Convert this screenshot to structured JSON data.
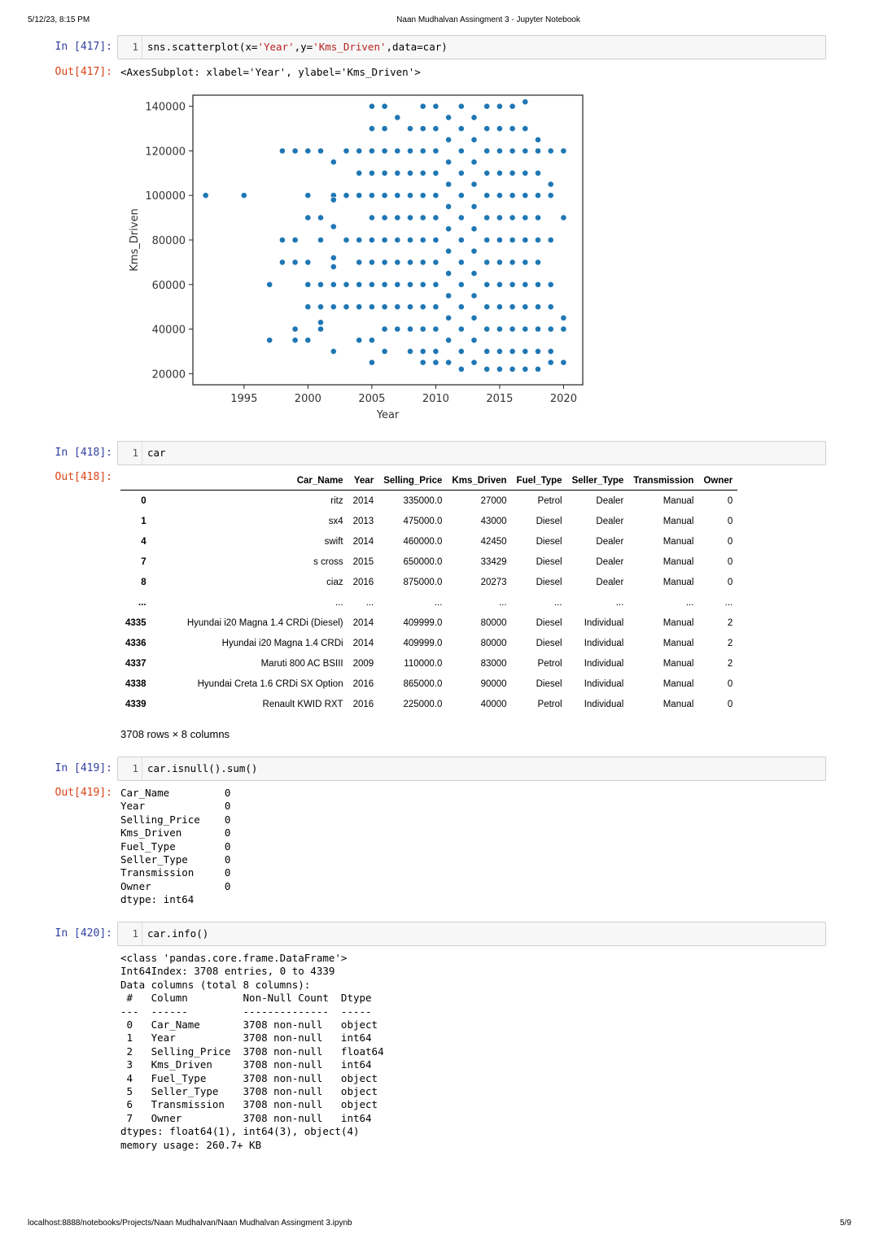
{
  "header": {
    "datetime": "5/12/23, 8:15 PM",
    "title": "Naan Mudhalvan Assingment 3 - Jupyter Notebook"
  },
  "footer": {
    "url": "localhost:8888/notebooks/Projects/Naan Mudhalvan/Naan Mudhalvan Assingment 3.ipynb",
    "page": "5/9"
  },
  "cells": [
    {
      "in_prompt": "In [417]:",
      "line_no": "1",
      "code_parts": [
        "sns.scatterplot(x=",
        "'Year'",
        ",y=",
        "'Kms_Driven'",
        ",data=car)"
      ],
      "out_prompt": "Out[417]:",
      "output": "<AxesSubplot: xlabel='Year', ylabel='Kms_Driven'>"
    },
    {
      "in_prompt": "In [418]:",
      "line_no": "1",
      "code": "car",
      "out_prompt": "Out[418]:",
      "footer_text": "3708 rows × 8 columns"
    },
    {
      "in_prompt": "In [419]:",
      "line_no": "1",
      "code": "car.isnull().sum()",
      "out_prompt": "Out[419]:",
      "output": "Car_Name         0\nYear             0\nSelling_Price    0\nKms_Driven       0\nFuel_Type        0\nSeller_Type      0\nTransmission     0\nOwner            0\ndtype: int64"
    },
    {
      "in_prompt": "In [420]:",
      "line_no": "1",
      "code": "car.info()",
      "output": "<class 'pandas.core.frame.DataFrame'>\nInt64Index: 3708 entries, 0 to 4339\nData columns (total 8 columns):\n #   Column         Non-Null Count  Dtype  \n---  ------         --------------  -----  \n 0   Car_Name       3708 non-null   object \n 1   Year           3708 non-null   int64  \n 2   Selling_Price  3708 non-null   float64\n 3   Kms_Driven     3708 non-null   int64  \n 4   Fuel_Type      3708 non-null   object \n 5   Seller_Type    3708 non-null   object \n 6   Transmission   3708 non-null   object \n 7   Owner          3708 non-null   int64  \ndtypes: float64(1), int64(3), object(4)\nmemory usage: 260.7+ KB"
    }
  ],
  "table": {
    "columns": [
      "",
      "Car_Name",
      "Year",
      "Selling_Price",
      "Kms_Driven",
      "Fuel_Type",
      "Seller_Type",
      "Transmission",
      "Owner"
    ],
    "rows": [
      [
        "0",
        "ritz",
        "2014",
        "335000.0",
        "27000",
        "Petrol",
        "Dealer",
        "Manual",
        "0"
      ],
      [
        "1",
        "sx4",
        "2013",
        "475000.0",
        "43000",
        "Diesel",
        "Dealer",
        "Manual",
        "0"
      ],
      [
        "4",
        "swift",
        "2014",
        "460000.0",
        "42450",
        "Diesel",
        "Dealer",
        "Manual",
        "0"
      ],
      [
        "7",
        "s cross",
        "2015",
        "650000.0",
        "33429",
        "Diesel",
        "Dealer",
        "Manual",
        "0"
      ],
      [
        "8",
        "ciaz",
        "2016",
        "875000.0",
        "20273",
        "Diesel",
        "Dealer",
        "Manual",
        "0"
      ],
      [
        "...",
        "...",
        "...",
        "...",
        "...",
        "...",
        "...",
        "...",
        "..."
      ],
      [
        "4335",
        "Hyundai i20 Magna 1.4 CRDi (Diesel)",
        "2014",
        "409999.0",
        "80000",
        "Diesel",
        "Individual",
        "Manual",
        "2"
      ],
      [
        "4336",
        "Hyundai i20 Magna 1.4 CRDi",
        "2014",
        "409999.0",
        "80000",
        "Diesel",
        "Individual",
        "Manual",
        "2"
      ],
      [
        "4337",
        "Maruti 800 AC BSIII",
        "2009",
        "110000.0",
        "83000",
        "Petrol",
        "Individual",
        "Manual",
        "2"
      ],
      [
        "4338",
        "Hyundai Creta 1.6 CRDi SX Option",
        "2016",
        "865000.0",
        "90000",
        "Diesel",
        "Individual",
        "Manual",
        "0"
      ],
      [
        "4339",
        "Renault KWID RXT",
        "2016",
        "225000.0",
        "40000",
        "Petrol",
        "Individual",
        "Manual",
        "0"
      ]
    ]
  },
  "chart_data": {
    "type": "scatter",
    "title": "",
    "xlabel": "Year",
    "ylabel": "Kms_Driven",
    "xlim": [
      1991,
      2021.5
    ],
    "ylim": [
      15000,
      145000
    ],
    "xticks": [
      1995,
      2000,
      2005,
      2010,
      2015,
      2020
    ],
    "yticks": [
      20000,
      40000,
      60000,
      80000,
      100000,
      120000,
      140000
    ],
    "marker_color": "#1f77b4",
    "grid": false,
    "series": [
      {
        "points": [
          [
            1992,
            100000
          ],
          [
            1995,
            100000
          ],
          [
            1997,
            35000
          ],
          [
            1997,
            60000
          ],
          [
            1998,
            120000
          ],
          [
            1998,
            80000
          ],
          [
            1998,
            70000
          ],
          [
            1999,
            120000
          ],
          [
            1999,
            80000
          ],
          [
            1999,
            70000
          ],
          [
            1999,
            40000
          ],
          [
            1999,
            35000
          ],
          [
            2000,
            120000
          ],
          [
            2000,
            100000
          ],
          [
            2000,
            90000
          ],
          [
            2000,
            70000
          ],
          [
            2000,
            60000
          ],
          [
            2000,
            50000
          ],
          [
            2000,
            35000
          ],
          [
            2001,
            120000
          ],
          [
            2001,
            90000
          ],
          [
            2001,
            80000
          ],
          [
            2001,
            60000
          ],
          [
            2001,
            50000
          ],
          [
            2001,
            43000
          ],
          [
            2001,
            40000
          ],
          [
            2002,
            115000
          ],
          [
            2002,
            100000
          ],
          [
            2002,
            98000
          ],
          [
            2002,
            86000
          ],
          [
            2002,
            72000
          ],
          [
            2002,
            68000
          ],
          [
            2002,
            60000
          ],
          [
            2002,
            50000
          ],
          [
            2002,
            30000
          ],
          [
            2003,
            120000
          ],
          [
            2003,
            100000
          ],
          [
            2003,
            80000
          ],
          [
            2003,
            60000
          ],
          [
            2003,
            50000
          ],
          [
            2004,
            120000
          ],
          [
            2004,
            110000
          ],
          [
            2004,
            100000
          ],
          [
            2004,
            80000
          ],
          [
            2004,
            70000
          ],
          [
            2004,
            60000
          ],
          [
            2004,
            50000
          ],
          [
            2004,
            35000
          ],
          [
            2005,
            140000
          ],
          [
            2005,
            130000
          ],
          [
            2005,
            120000
          ],
          [
            2005,
            110000
          ],
          [
            2005,
            100000
          ],
          [
            2005,
            90000
          ],
          [
            2005,
            80000
          ],
          [
            2005,
            70000
          ],
          [
            2005,
            60000
          ],
          [
            2005,
            50000
          ],
          [
            2005,
            35000
          ],
          [
            2005,
            25000
          ],
          [
            2006,
            140000
          ],
          [
            2006,
            130000
          ],
          [
            2006,
            120000
          ],
          [
            2006,
            110000
          ],
          [
            2006,
            100000
          ],
          [
            2006,
            90000
          ],
          [
            2006,
            80000
          ],
          [
            2006,
            70000
          ],
          [
            2006,
            60000
          ],
          [
            2006,
            50000
          ],
          [
            2006,
            40000
          ],
          [
            2006,
            30000
          ],
          [
            2007,
            135000
          ],
          [
            2007,
            120000
          ],
          [
            2007,
            110000
          ],
          [
            2007,
            100000
          ],
          [
            2007,
            90000
          ],
          [
            2007,
            80000
          ],
          [
            2007,
            70000
          ],
          [
            2007,
            60000
          ],
          [
            2007,
            50000
          ],
          [
            2007,
            40000
          ],
          [
            2008,
            130000
          ],
          [
            2008,
            120000
          ],
          [
            2008,
            110000
          ],
          [
            2008,
            100000
          ],
          [
            2008,
            90000
          ],
          [
            2008,
            80000
          ],
          [
            2008,
            70000
          ],
          [
            2008,
            60000
          ],
          [
            2008,
            50000
          ],
          [
            2008,
            40000
          ],
          [
            2008,
            30000
          ],
          [
            2009,
            140000
          ],
          [
            2009,
            130000
          ],
          [
            2009,
            120000
          ],
          [
            2009,
            110000
          ],
          [
            2009,
            100000
          ],
          [
            2009,
            90000
          ],
          [
            2009,
            80000
          ],
          [
            2009,
            70000
          ],
          [
            2009,
            60000
          ],
          [
            2009,
            50000
          ],
          [
            2009,
            40000
          ],
          [
            2009,
            30000
          ],
          [
            2009,
            25000
          ],
          [
            2010,
            140000
          ],
          [
            2010,
            130000
          ],
          [
            2010,
            120000
          ],
          [
            2010,
            110000
          ],
          [
            2010,
            100000
          ],
          [
            2010,
            90000
          ],
          [
            2010,
            80000
          ],
          [
            2010,
            70000
          ],
          [
            2010,
            60000
          ],
          [
            2010,
            50000
          ],
          [
            2010,
            40000
          ],
          [
            2010,
            30000
          ],
          [
            2010,
            25000
          ],
          [
            2011,
            135000
          ],
          [
            2011,
            125000
          ],
          [
            2011,
            115000
          ],
          [
            2011,
            105000
          ],
          [
            2011,
            95000
          ],
          [
            2011,
            85000
          ],
          [
            2011,
            75000
          ],
          [
            2011,
            65000
          ],
          [
            2011,
            55000
          ],
          [
            2011,
            45000
          ],
          [
            2011,
            35000
          ],
          [
            2011,
            25000
          ],
          [
            2012,
            140000
          ],
          [
            2012,
            130000
          ],
          [
            2012,
            120000
          ],
          [
            2012,
            110000
          ],
          [
            2012,
            100000
          ],
          [
            2012,
            90000
          ],
          [
            2012,
            80000
          ],
          [
            2012,
            70000
          ],
          [
            2012,
            60000
          ],
          [
            2012,
            50000
          ],
          [
            2012,
            40000
          ],
          [
            2012,
            30000
          ],
          [
            2012,
            22000
          ],
          [
            2013,
            135000
          ],
          [
            2013,
            125000
          ],
          [
            2013,
            115000
          ],
          [
            2013,
            105000
          ],
          [
            2013,
            95000
          ],
          [
            2013,
            85000
          ],
          [
            2013,
            75000
          ],
          [
            2013,
            65000
          ],
          [
            2013,
            55000
          ],
          [
            2013,
            45000
          ],
          [
            2013,
            35000
          ],
          [
            2013,
            25000
          ],
          [
            2014,
            140000
          ],
          [
            2014,
            130000
          ],
          [
            2014,
            120000
          ],
          [
            2014,
            110000
          ],
          [
            2014,
            100000
          ],
          [
            2014,
            90000
          ],
          [
            2014,
            80000
          ],
          [
            2014,
            70000
          ],
          [
            2014,
            60000
          ],
          [
            2014,
            50000
          ],
          [
            2014,
            40000
          ],
          [
            2014,
            30000
          ],
          [
            2014,
            22000
          ],
          [
            2015,
            140000
          ],
          [
            2015,
            130000
          ],
          [
            2015,
            120000
          ],
          [
            2015,
            110000
          ],
          [
            2015,
            100000
          ],
          [
            2015,
            90000
          ],
          [
            2015,
            80000
          ],
          [
            2015,
            70000
          ],
          [
            2015,
            60000
          ],
          [
            2015,
            50000
          ],
          [
            2015,
            40000
          ],
          [
            2015,
            30000
          ],
          [
            2015,
            22000
          ],
          [
            2016,
            140000
          ],
          [
            2016,
            130000
          ],
          [
            2016,
            120000
          ],
          [
            2016,
            110000
          ],
          [
            2016,
            100000
          ],
          [
            2016,
            90000
          ],
          [
            2016,
            80000
          ],
          [
            2016,
            70000
          ],
          [
            2016,
            60000
          ],
          [
            2016,
            50000
          ],
          [
            2016,
            40000
          ],
          [
            2016,
            30000
          ],
          [
            2016,
            22000
          ],
          [
            2017,
            142000
          ],
          [
            2017,
            130000
          ],
          [
            2017,
            120000
          ],
          [
            2017,
            110000
          ],
          [
            2017,
            100000
          ],
          [
            2017,
            90000
          ],
          [
            2017,
            80000
          ],
          [
            2017,
            70000
          ],
          [
            2017,
            60000
          ],
          [
            2017,
            50000
          ],
          [
            2017,
            40000
          ],
          [
            2017,
            30000
          ],
          [
            2017,
            22000
          ],
          [
            2018,
            125000
          ],
          [
            2018,
            120000
          ],
          [
            2018,
            110000
          ],
          [
            2018,
            100000
          ],
          [
            2018,
            90000
          ],
          [
            2018,
            80000
          ],
          [
            2018,
            70000
          ],
          [
            2018,
            60000
          ],
          [
            2018,
            50000
          ],
          [
            2018,
            40000
          ],
          [
            2018,
            30000
          ],
          [
            2018,
            22000
          ],
          [
            2019,
            120000
          ],
          [
            2019,
            105000
          ],
          [
            2019,
            100000
          ],
          [
            2019,
            80000
          ],
          [
            2019,
            60000
          ],
          [
            2019,
            50000
          ],
          [
            2019,
            40000
          ],
          [
            2019,
            30000
          ],
          [
            2019,
            25000
          ],
          [
            2020,
            120000
          ],
          [
            2020,
            90000
          ],
          [
            2020,
            45000
          ],
          [
            2020,
            40000
          ],
          [
            2020,
            25000
          ]
        ]
      }
    ]
  }
}
